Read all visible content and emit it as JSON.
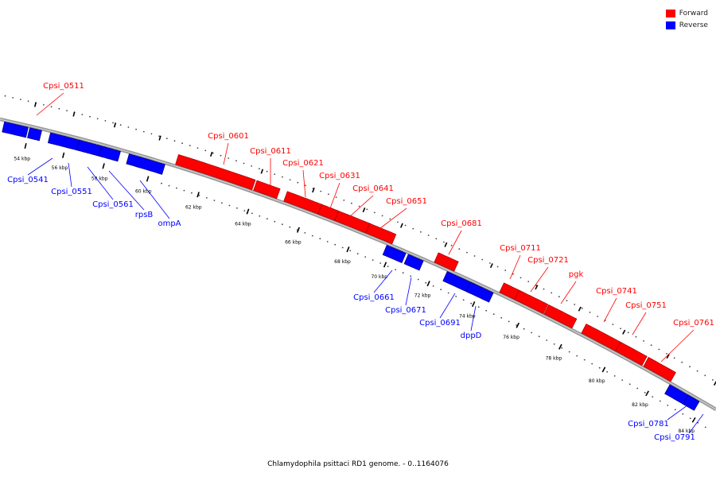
{
  "legend": {
    "items": [
      {
        "label": "Forward",
        "color": "#ff0000"
      },
      {
        "label": "Reverse",
        "color": "#0000ff"
      }
    ]
  },
  "caption": "Chlamydophila psittaci RD1 genome. - 0..1164076",
  "colors": {
    "forward": "#ff0000",
    "reverse": "#0000ff",
    "backbone": "#888888",
    "tick": "#000000"
  },
  "scale": {
    "ticks": [
      {
        "kbp": 54,
        "label": "54 kbp"
      },
      {
        "kbp": 56,
        "label": "56 kbp"
      },
      {
        "kbp": 58,
        "label": "58 kbp"
      },
      {
        "kbp": 60,
        "label": "60 kbp"
      },
      {
        "kbp": 62,
        "label": "62 kbp"
      },
      {
        "kbp": 64,
        "label": "64 kbp"
      },
      {
        "kbp": 66,
        "label": "66 kbp"
      },
      {
        "kbp": 68,
        "label": "68 kbp"
      },
      {
        "kbp": 70,
        "label": "70 kbp"
      },
      {
        "kbp": 72,
        "label": "72 kbp"
      },
      {
        "kbp": 74,
        "label": "74 kbp"
      },
      {
        "kbp": 76,
        "label": "76 kbp"
      },
      {
        "kbp": 78,
        "label": "78 kbp"
      },
      {
        "kbp": 80,
        "label": "80 kbp"
      },
      {
        "kbp": 82,
        "label": "82 kbp"
      },
      {
        "kbp": 84,
        "label": "84 kbp"
      }
    ]
  },
  "genes": [
    {
      "name": "Cpsi_0511",
      "strand": "forward",
      "labeled": true
    },
    {
      "name": "Cpsi_0541",
      "strand": "reverse",
      "labeled": true
    },
    {
      "name": "Cpsi_0551",
      "strand": "reverse",
      "labeled": true
    },
    {
      "name": "Cpsi_0561",
      "strand": "reverse",
      "labeled": true
    },
    {
      "name": "rpsB",
      "strand": "reverse",
      "labeled": true
    },
    {
      "name": "ompA",
      "strand": "reverse",
      "labeled": true
    },
    {
      "name": "Cpsi_0601",
      "strand": "forward",
      "labeled": true
    },
    {
      "name": "Cpsi_0611",
      "strand": "forward",
      "labeled": true
    },
    {
      "name": "Cpsi_0621",
      "strand": "forward",
      "labeled": true
    },
    {
      "name": "Cpsi_0631",
      "strand": "forward",
      "labeled": true
    },
    {
      "name": "Cpsi_0641",
      "strand": "forward",
      "labeled": true
    },
    {
      "name": "Cpsi_0651",
      "strand": "forward",
      "labeled": true
    },
    {
      "name": "Cpsi_0661",
      "strand": "reverse",
      "labeled": true
    },
    {
      "name": "Cpsi_0671",
      "strand": "reverse",
      "labeled": true
    },
    {
      "name": "Cpsi_0681",
      "strand": "forward",
      "labeled": true
    },
    {
      "name": "Cpsi_0691",
      "strand": "reverse",
      "labeled": true
    },
    {
      "name": "dppD",
      "strand": "reverse",
      "labeled": true
    },
    {
      "name": "Cpsi_0711",
      "strand": "forward",
      "labeled": true
    },
    {
      "name": "Cpsi_0721",
      "strand": "forward",
      "labeled": true
    },
    {
      "name": "pgk",
      "strand": "forward",
      "labeled": true
    },
    {
      "name": "Cpsi_0741",
      "strand": "forward",
      "labeled": true
    },
    {
      "name": "Cpsi_0751",
      "strand": "forward",
      "labeled": true
    },
    {
      "name": "Cpsi_0761",
      "strand": "forward",
      "labeled": true
    },
    {
      "name": "Cpsi_0781",
      "strand": "reverse",
      "labeled": true
    },
    {
      "name": "Cpsi_0791",
      "strand": "reverse",
      "labeled": true
    }
  ]
}
